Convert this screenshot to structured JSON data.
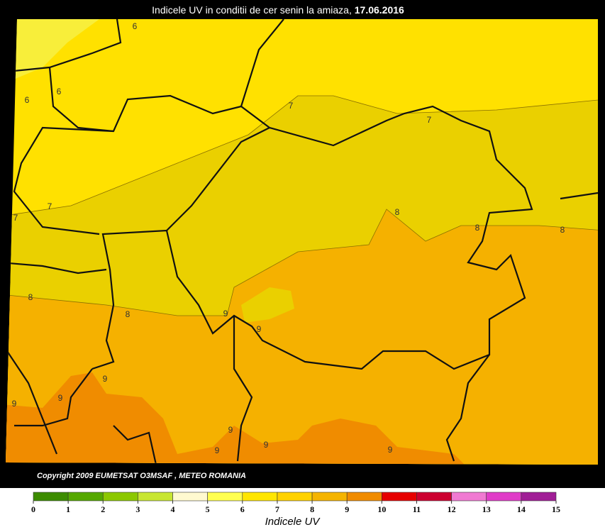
{
  "title": "Indicele UV in conditii de cer senin la amiaza,",
  "date": "17.06.2016",
  "copyright": "Copyright 2009 EUMETSAT O3MSAF , METEO  ROMANIA",
  "contour_labels": [
    6,
    6,
    6,
    7,
    7,
    7,
    7,
    8,
    8,
    8,
    8,
    8,
    9,
    9,
    9,
    9,
    9,
    9,
    9,
    9,
    9
  ],
  "colorbar": {
    "label": "Indicele UV",
    "ticks": [
      0,
      1,
      2,
      3,
      4,
      5,
      6,
      7,
      8,
      9,
      10,
      11,
      12,
      13,
      14,
      15
    ],
    "colors": [
      "#3c8c00",
      "#55a800",
      "#8cc800",
      "#c8e632",
      "#fffad0",
      "#ffff50",
      "#ffe600",
      "#ffd200",
      "#f5b400",
      "#f08c00",
      "#e60000",
      "#cc0030",
      "#f07ad2",
      "#e03cc8",
      "#a01e96"
    ]
  }
}
